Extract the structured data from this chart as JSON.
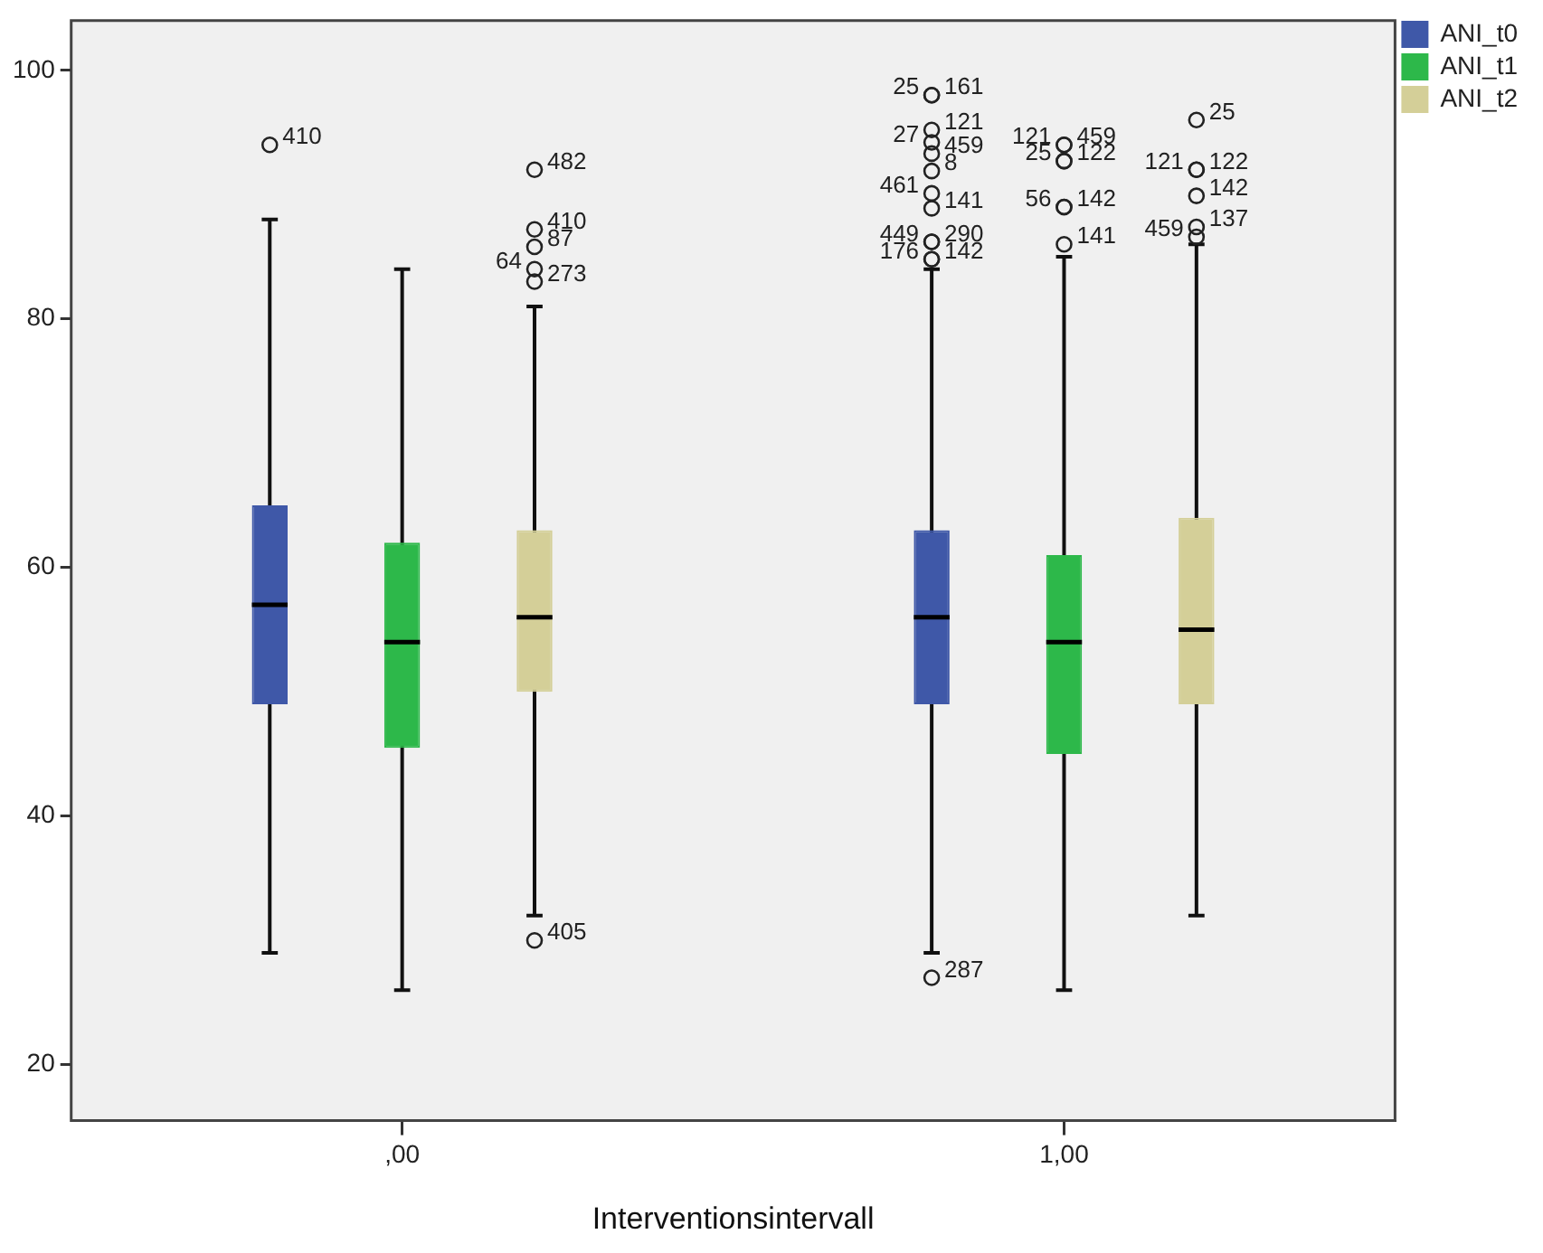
{
  "chart_data": {
    "type": "box",
    "xlabel": "Interventionsintervall",
    "categories": [
      ",00",
      "1,00"
    ],
    "series": [
      {
        "name": "ANI_t0",
        "color": "#3f58a8",
        "boxes": [
          {
            "low": 29,
            "q1": 49,
            "median": 57,
            "q3": 65,
            "high": 88,
            "outliers": [
              94
            ]
          },
          {
            "low": 29,
            "q1": 49,
            "median": 56,
            "q3": 63,
            "high": 84,
            "outliers": [
              98,
              95.2,
              93.3,
              91.9,
              88.9,
              86.2,
              84.8,
              98,
              94.2,
              90.1,
              86.2,
              84.8,
              27
            ]
          }
        ]
      },
      {
        "name": "ANI_t1",
        "color": "#2db84a",
        "boxes": [
          {
            "low": 26,
            "q1": 45.5,
            "median": 54,
            "q3": 62,
            "high": 84
          },
          {
            "low": 26,
            "q1": 45,
            "median": 54,
            "q3": 61,
            "high": 85,
            "outliers": [
              94,
              92.7,
              89,
              86,
              94,
              92.7,
              89
            ]
          }
        ]
      },
      {
        "name": "ANI_t2",
        "color": "#d4cf98",
        "boxes": [
          {
            "low": 32,
            "q1": 50,
            "median": 56,
            "q3": 63,
            "high": 81,
            "outliers": [
              92,
              87.2,
              85.8,
              83,
              84,
              30
            ]
          },
          {
            "low": 32,
            "q1": 49,
            "median": 55,
            "q3": 64,
            "high": 86,
            "outliers": [
              96,
              92,
              89.9,
              87.4,
              92,
              86.6
            ]
          }
        ]
      }
    ],
    "ylim": [
      15.5,
      104
    ],
    "yticks": [
      20,
      40,
      60,
      80,
      100
    ],
    "legend": "top right",
    "annotations": [
      "410",
      "482",
      "410",
      "87",
      "273",
      "64",
      "405",
      "161",
      "121",
      "459",
      "8",
      "141",
      "290",
      "142",
      "25",
      "27",
      "461",
      "449",
      "176",
      "287",
      "459",
      "122",
      "142",
      "141",
      "121",
      "25",
      "56",
      "25",
      "122",
      "142",
      "137",
      "121",
      "459"
    ]
  }
}
